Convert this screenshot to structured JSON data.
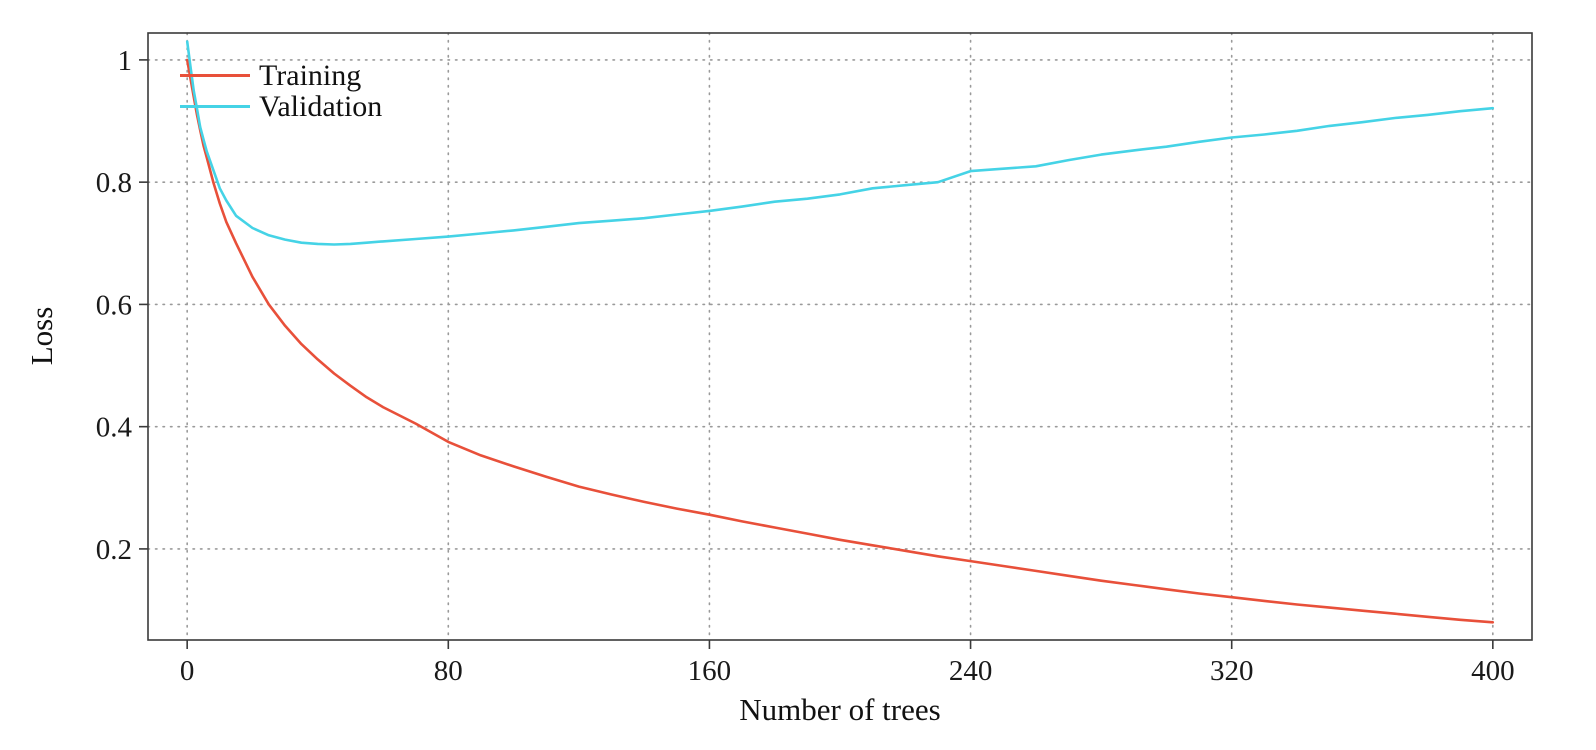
{
  "chart_data": {
    "type": "line",
    "title": "",
    "xlabel": "Number of trees",
    "ylabel": "Loss",
    "grid": true,
    "legend_position": "top-left",
    "xlim": [
      -12,
      412
    ],
    "ylim": [
      0.051,
      1.044
    ],
    "xticks": {
      "values": [
        0,
        80,
        160,
        240,
        320,
        400
      ],
      "labels": [
        "0",
        "80",
        "160",
        "240",
        "320",
        "400"
      ]
    },
    "yticks": {
      "values": [
        0.2,
        0.4,
        0.6,
        0.8,
        1.0
      ],
      "labels": [
        "0.2",
        "0.4",
        "0.6",
        "0.8",
        "1"
      ]
    },
    "x": [
      0,
      1,
      2,
      3,
      4,
      5,
      6,
      8,
      10,
      12,
      15,
      20,
      25,
      30,
      35,
      40,
      45,
      50,
      55,
      60,
      70,
      80,
      90,
      100,
      110,
      120,
      130,
      140,
      150,
      160,
      170,
      180,
      190,
      200,
      210,
      220,
      230,
      240,
      250,
      260,
      270,
      280,
      290,
      300,
      310,
      320,
      330,
      340,
      350,
      360,
      370,
      380,
      390,
      400
    ],
    "series": [
      {
        "name": "Training",
        "color": "#e8503a",
        "values": [
          1.0,
          0.97,
          0.94,
          0.91,
          0.885,
          0.86,
          0.84,
          0.8,
          0.765,
          0.735,
          0.7,
          0.645,
          0.6,
          0.565,
          0.535,
          0.51,
          0.487,
          0.467,
          0.448,
          0.432,
          0.405,
          0.375,
          0.353,
          0.335,
          0.318,
          0.302,
          0.289,
          0.277,
          0.266,
          0.256,
          0.245,
          0.235,
          0.225,
          0.215,
          0.206,
          0.197,
          0.188,
          0.18,
          0.172,
          0.164,
          0.156,
          0.148,
          0.141,
          0.134,
          0.127,
          0.121,
          0.115,
          0.109,
          0.104,
          0.099,
          0.094,
          0.089,
          0.084,
          0.08
        ]
      },
      {
        "name": "Validation",
        "color": "#45d3e6",
        "values": [
          1.03,
          0.99,
          0.95,
          0.92,
          0.89,
          0.87,
          0.85,
          0.82,
          0.79,
          0.77,
          0.745,
          0.725,
          0.713,
          0.706,
          0.701,
          0.699,
          0.698,
          0.699,
          0.701,
          0.703,
          0.707,
          0.711,
          0.716,
          0.721,
          0.727,
          0.733,
          0.737,
          0.741,
          0.747,
          0.753,
          0.76,
          0.768,
          0.773,
          0.78,
          0.79,
          0.795,
          0.8,
          0.818,
          0.822,
          0.826,
          0.836,
          0.845,
          0.852,
          0.858,
          0.866,
          0.873,
          0.878,
          0.884,
          0.892,
          0.898,
          0.905,
          0.91,
          0.916,
          0.921
        ]
      }
    ],
    "style": {
      "grid_color": "#9a9a9a",
      "axis_color": "#3a3a3a",
      "tick_label_color": "#1a1a1a"
    }
  }
}
